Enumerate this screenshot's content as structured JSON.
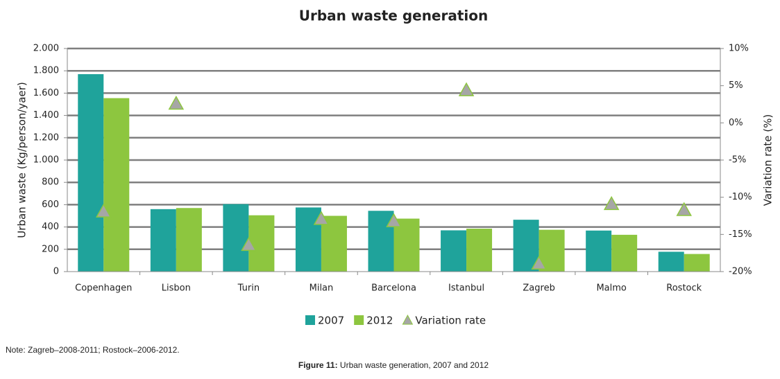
{
  "chart_data": {
    "type": "bar_line",
    "title": "Urban waste generation",
    "y_label": "Urban waste (Kg/person/yaer)",
    "y2_label": "Variation rate (%)",
    "categories": [
      "Copenhagen",
      "Lisbon",
      "Turin",
      "Milan",
      "Barcelona",
      "Istanbul",
      "Zagreb",
      "Malmo",
      "Rostock"
    ],
    "series": [
      {
        "name": "2007",
        "color": "#1fa39b",
        "values": [
          1770,
          560,
          605,
          575,
          545,
          370,
          465,
          368,
          178
        ]
      },
      {
        "name": "2012",
        "color": "#8dc63f",
        "values": [
          1555,
          570,
          505,
          500,
          475,
          385,
          375,
          330,
          158
        ]
      },
      {
        "name": "Variation rate",
        "color": "#a6a6a6",
        "axis": "y2",
        "values": [
          -12,
          2.5,
          -16.5,
          -13,
          -13.3,
          4.3,
          -19,
          -11,
          -11.8
        ]
      }
    ],
    "ylim": [
      0,
      2000
    ],
    "yticks": [
      0,
      200,
      400,
      600,
      800,
      {
        "value": 1000,
        "label": "1.000"
      },
      {
        "value": 1200,
        "label": "1.200"
      },
      {
        "value": 1400,
        "label": "1.400"
      },
      {
        "value": 1600,
        "label": "1.600"
      },
      {
        "value": 1800,
        "label": "1.800"
      },
      {
        "value": 2000,
        "label": "2.000"
      }
    ],
    "y2lim": [
      -20,
      10
    ],
    "y2ticks": [
      {
        "value": -20,
        "label": "-20%"
      },
      {
        "value": -15,
        "label": "-15%"
      },
      {
        "value": -10,
        "label": "-10%"
      },
      {
        "value": -5,
        "label": "-5%"
      },
      {
        "value": 0,
        "label": "0%"
      },
      {
        "value": 5,
        "label": "5%"
      },
      {
        "value": 10,
        "label": "10%"
      }
    ],
    "grid": true,
    "legend": "bottom"
  },
  "note": "Note: Zagreb–2008-2011; Rostock–2006-2012.",
  "caption_label": "Figure 11:",
  "caption_text": "Urban waste generation, 2007 and 2012"
}
